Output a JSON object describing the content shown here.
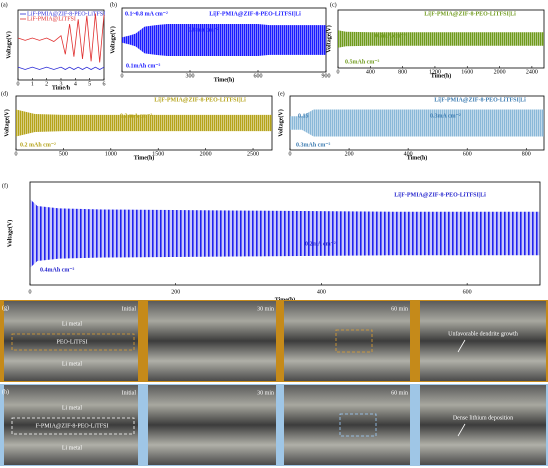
{
  "chart_data": [
    {
      "type": "line",
      "label": "(a)",
      "xlabel": "Time/h",
      "ylabel": "Voltage(V)",
      "xlim": [
        0,
        6
      ],
      "xticks": [
        0,
        1,
        2,
        3,
        4,
        5,
        6
      ],
      "ylim": [
        -1,
        5
      ],
      "x": [
        0,
        0.5,
        1,
        1.5,
        2,
        2.5,
        3,
        3.3,
        3.6,
        3.9,
        4.2,
        4.5,
        4.8,
        5.1,
        5.4,
        5.7,
        6
      ],
      "series": [
        {
          "name": "LiF-PMIA@ZIF-8-PEO-LiTFSI",
          "color": "#2b2bd6",
          "values": [
            0.1,
            -0.1,
            0.1,
            -0.1,
            0.1,
            -0.1,
            0.1,
            -0.1,
            0.1,
            -0.1,
            0.1,
            -0.1,
            0.1,
            -0.1,
            0.1,
            -0.1,
            0.1
          ]
        },
        {
          "name": "LiF-PMIA@LiTFSI",
          "color": "#e03030",
          "values": [
            2.6,
            2.4,
            2.6,
            2.4,
            2.6,
            2.3,
            2.8,
            1.2,
            3.8,
            1.0,
            4.2,
            0.8,
            4.5,
            0.6,
            4.7,
            0.5,
            4.6
          ]
        }
      ]
    },
    {
      "type": "band",
      "label": "(b)",
      "title": "Li|F-PMIA@ZIF-8-PEO-LiTFSI|Li",
      "annotations": [
        "0.1~0.8 mA cm⁻²",
        "0.8mA cm⁻²",
        "0.1mAh cm⁻²"
      ],
      "xlabel": "Time(h)",
      "ylabel": "Voltage(V)",
      "xlim": [
        0,
        900
      ],
      "xticks": [
        0,
        300,
        600,
        900
      ],
      "ylim": [
        -0.6,
        0.6
      ],
      "x": [
        0,
        30,
        60,
        100,
        150,
        200,
        300,
        600,
        650,
        900
      ],
      "series": [
        {
          "color": "#1a1aff",
          "values": [
            0.05,
            0.08,
            0.12,
            0.25,
            0.28,
            0.3,
            0.3,
            0.3,
            0.28,
            0.28
          ]
        },
        {
          "color": "#1a1aff",
          "values": [
            -0.05,
            -0.08,
            -0.12,
            -0.25,
            -0.28,
            -0.3,
            -0.3,
            -0.3,
            -0.28,
            -0.28
          ]
        }
      ]
    },
    {
      "type": "band",
      "label": "(c)",
      "title": "Li|F-PMIA@ZIF-8-PEO-LiTFSI|Li",
      "annotations": [
        "0.5mA cm⁻²",
        "0.5mAh cm⁻²"
      ],
      "xlabel": "Time(h)",
      "ylabel": "Voltage(V)",
      "xlim": [
        0,
        2550
      ],
      "xticks": [
        0,
        400,
        800,
        1200,
        1600,
        2000,
        2400
      ],
      "ylim": [
        -0.6,
        0.6
      ],
      "x": [
        0,
        100,
        400,
        1200,
        2000,
        2550
      ],
      "series": [
        {
          "color": "#6f9a1c",
          "values": [
            0.18,
            0.15,
            0.14,
            0.14,
            0.14,
            0.14
          ]
        },
        {
          "color": "#6f9a1c",
          "values": [
            -0.18,
            -0.15,
            -0.14,
            -0.14,
            -0.14,
            -0.14
          ]
        }
      ]
    },
    {
      "type": "band",
      "label": "(d)",
      "title": "Li|F-PMIA@ZIF-8-PEO-LiTFSI|Li",
      "annotations": [
        "0.2 mA cm⁻²",
        "0.2 mAh cm⁻²"
      ],
      "xlabel": "Time(h)",
      "ylabel": "Voltage(V)",
      "xlim": [
        0,
        2700
      ],
      "xticks": [
        0,
        500,
        1000,
        1500,
        2000,
        2500
      ],
      "ylim": [
        -0.6,
        0.6
      ],
      "x": [
        0,
        100,
        200,
        500,
        1500,
        2700
      ],
      "series": [
        {
          "color": "#b5a31a",
          "values": [
            0.3,
            0.25,
            0.2,
            0.18,
            0.18,
            0.18
          ]
        },
        {
          "color": "#b5a31a",
          "values": [
            -0.3,
            -0.25,
            -0.2,
            -0.18,
            -0.18,
            -0.18
          ]
        }
      ]
    },
    {
      "type": "band",
      "label": "(e)",
      "title": "Li|F-PMIA@ZIF-8-PEO-LiTFSI|Li",
      "annotations": [
        "0.15",
        "0.3mA cm⁻²",
        "0.3mAh cm⁻²"
      ],
      "xlabel": "Time(h)",
      "ylabel": "Voltage(V)",
      "xlim": [
        0,
        860
      ],
      "xticks": [
        0,
        200,
        400,
        600,
        800
      ],
      "ylim": [
        -0.6,
        0.6
      ],
      "x": [
        0,
        40,
        80,
        200,
        600,
        860
      ],
      "series": [
        {
          "color": "#8ab8d8",
          "values": [
            0.15,
            0.15,
            0.3,
            0.3,
            0.3,
            0.3
          ]
        },
        {
          "color": "#8ab8d8",
          "values": [
            -0.15,
            -0.15,
            -0.3,
            -0.3,
            -0.3,
            -0.3
          ]
        }
      ]
    },
    {
      "type": "band",
      "label": "(f)",
      "title": "Li|F-PMIA@ZIF-8-PEO-LiTFSI|Li",
      "annotations": [
        "0.2mA cm⁻²",
        "0.4mAh cm⁻²"
      ],
      "xlabel": "Time(h)",
      "ylabel": "Voltage(V)",
      "xlim": [
        0,
        700
      ],
      "xticks": [
        0,
        200,
        400,
        600
      ],
      "ylim": [
        -0.45,
        0.45
      ],
      "x": [
        0,
        10,
        40,
        100,
        300,
        500,
        700
      ],
      "series": [
        {
          "color": "#2222ee",
          "values": [
            0.3,
            0.24,
            0.22,
            0.21,
            0.2,
            0.19,
            0.19
          ]
        },
        {
          "color": "#2222ee",
          "values": [
            -0.3,
            -0.24,
            -0.22,
            -0.21,
            -0.2,
            -0.19,
            -0.19
          ]
        }
      ]
    }
  ],
  "photo_panels": [
    {
      "label": "(g)",
      "times": [
        "Initial",
        "30 min",
        "60 min"
      ],
      "layers": [
        "Li metal",
        "PEO-LiTFSI",
        "Li metal"
      ],
      "note": "Unfavorable dendrite growth"
    },
    {
      "label": "(h)",
      "times": [
        "Initial",
        "30 min",
        "60 min"
      ],
      "layers": [
        "Li metal",
        "F-PMIA@ZIF-8-PEO-LiTFSI",
        "Li metal"
      ],
      "note": "Dense lithium deposition"
    }
  ]
}
